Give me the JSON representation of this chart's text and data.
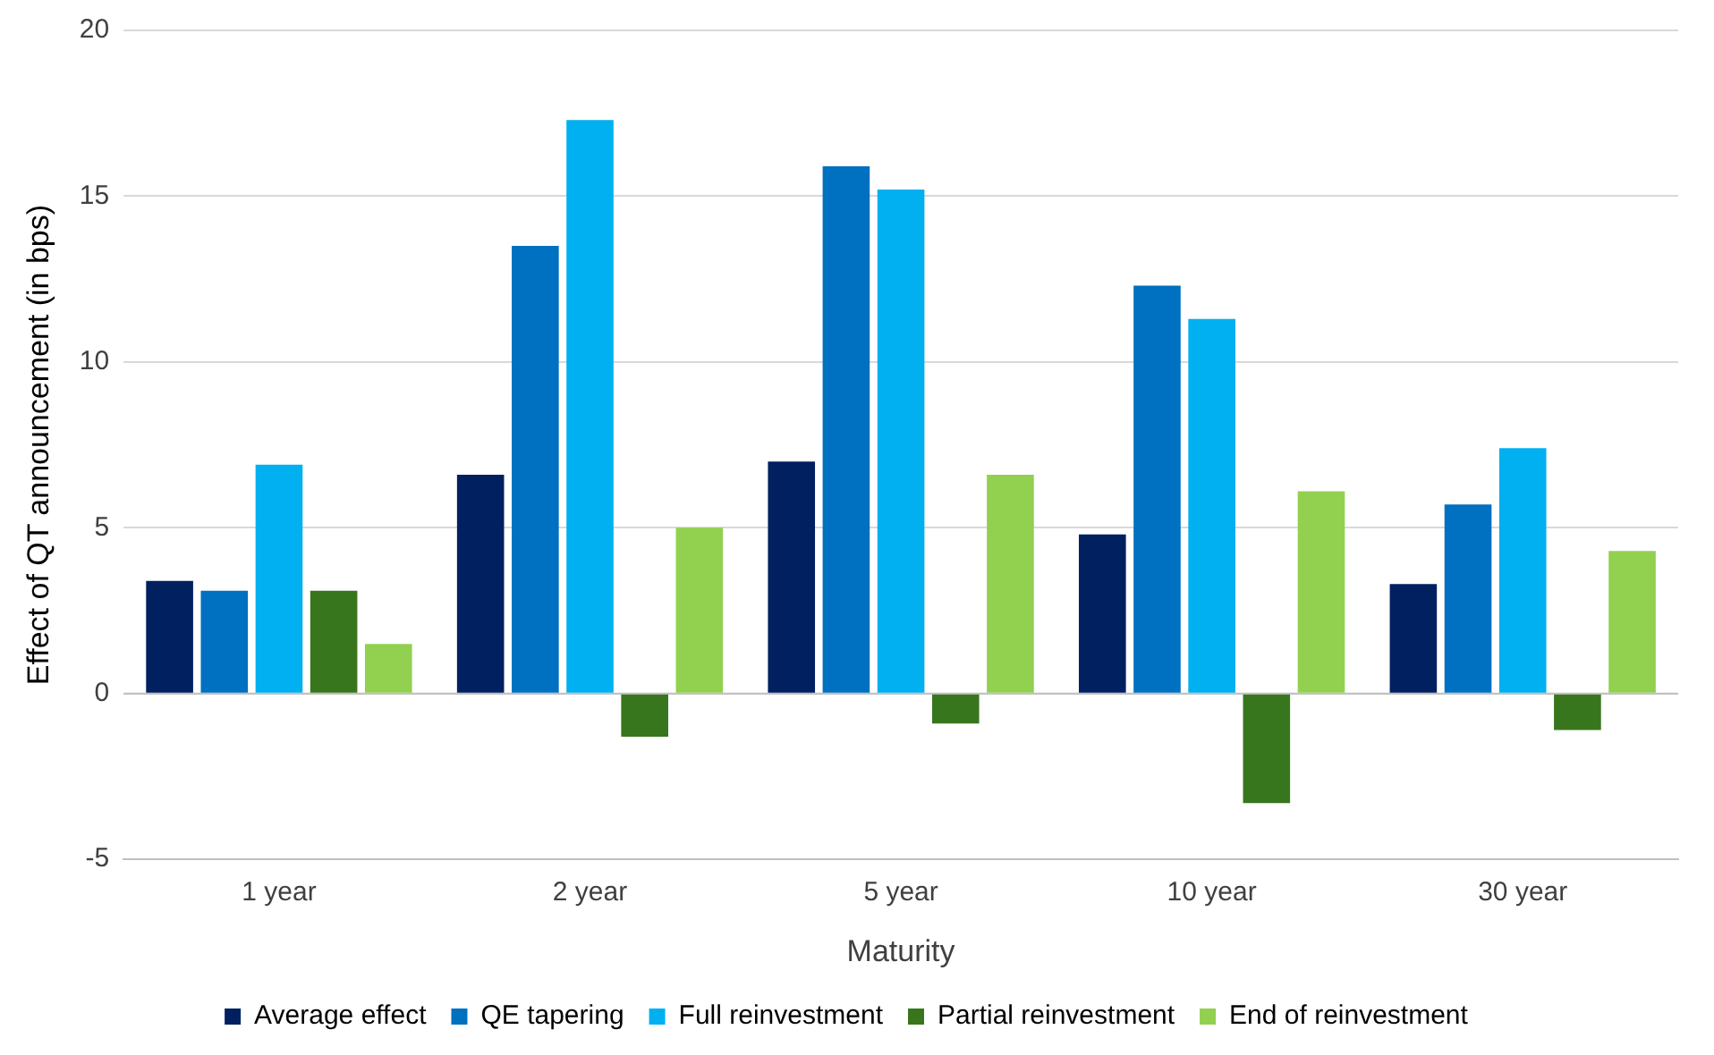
{
  "chart_data": {
    "type": "bar",
    "xlabel": "Maturity",
    "ylabel": "Effect of QT announcement (in bps)",
    "categories": [
      "1 year",
      "2 year",
      "5 year",
      "10 year",
      "30 year"
    ],
    "series": [
      {
        "name": "Average effect",
        "color": "#002060",
        "values": [
          3.4,
          6.6,
          7.0,
          4.8,
          3.3
        ]
      },
      {
        "name": "QE tapering",
        "color": "#0070c0",
        "values": [
          3.1,
          13.5,
          15.9,
          12.3,
          5.7
        ]
      },
      {
        "name": "Full reinvestment",
        "color": "#00b0f0",
        "values": [
          6.9,
          17.3,
          15.2,
          11.3,
          7.4
        ]
      },
      {
        "name": "Partial reinvestment",
        "color": "#38761d",
        "values": [
          3.1,
          -1.3,
          -0.9,
          -3.3,
          -1.1
        ]
      },
      {
        "name": "End of reinvestment",
        "color": "#92d050",
        "values": [
          1.5,
          5.0,
          6.6,
          6.1,
          4.3
        ]
      }
    ],
    "ylim": [
      -5,
      20
    ],
    "yticks": [
      -5,
      0,
      5,
      10,
      15,
      20
    ],
    "grid": "y",
    "legend": "bottom"
  }
}
